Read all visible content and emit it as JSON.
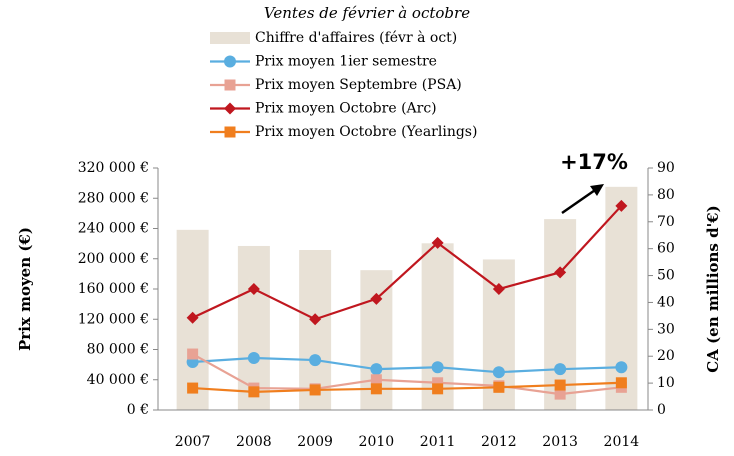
{
  "chart_data": {
    "type": "bar-line",
    "subtitle": "Ventes de février à octobre",
    "categories": [
      "2007",
      "2008",
      "2009",
      "2010",
      "2011",
      "2012",
      "2013",
      "2014"
    ],
    "series": [
      {
        "name": "Chiffre d'affaires (févr à oct)",
        "type": "bar",
        "axis": "y2",
        "color": "#e8e1d6",
        "values": [
          67,
          61,
          59.5,
          52,
          62,
          56,
          71,
          83
        ]
      },
      {
        "name": "Prix moyen 1ier semestre",
        "type": "line",
        "marker": "circle",
        "color": "#5aaee0",
        "values": [
          63500,
          68800,
          66000,
          54000,
          56500,
          50000,
          54000,
          56500
        ]
      },
      {
        "name": "Prix moyen Septembre (PSA)",
        "type": "line",
        "marker": "square",
        "color": "#e8a294",
        "values": [
          74000,
          29000,
          28000,
          40000,
          36000,
          32000,
          21000,
          30000
        ]
      },
      {
        "name": "Prix moyen Octobre (Arc)",
        "type": "line",
        "marker": "diamond",
        "color": "#c0171f",
        "values": [
          122000,
          160000,
          120000,
          147000,
          221000,
          160000,
          182000,
          270000
        ]
      },
      {
        "name": "Prix moyen Octobre (Yearlings)",
        "type": "line",
        "marker": "square",
        "color": "#f07e1e",
        "values": [
          29000,
          24000,
          26500,
          28000,
          28000,
          30000,
          33000,
          36000
        ]
      }
    ],
    "ylabel": "Prix moyen (€)",
    "y2label": "CA (en millions d'€)",
    "ylim": [
      0,
      320000
    ],
    "yticks": [
      {
        "value": 0,
        "label": "0 €"
      },
      {
        "value": 40000,
        "label": "40 000 €"
      },
      {
        "value": 80000,
        "label": "80 000 €"
      },
      {
        "value": 120000,
        "label": "120 000 €"
      },
      {
        "value": 160000,
        "label": "160 000 €"
      },
      {
        "value": 200000,
        "label": "200 000 €"
      },
      {
        "value": 240000,
        "label": "240 000 €"
      },
      {
        "value": 280000,
        "label": "280 000 €"
      },
      {
        "value": 320000,
        "label": "320 000 €"
      }
    ],
    "y2lim": [
      0,
      90
    ],
    "y2ticks": [
      0,
      10,
      20,
      30,
      40,
      50,
      60,
      70,
      80,
      90
    ],
    "annotation": "+17%",
    "grid": false
  }
}
